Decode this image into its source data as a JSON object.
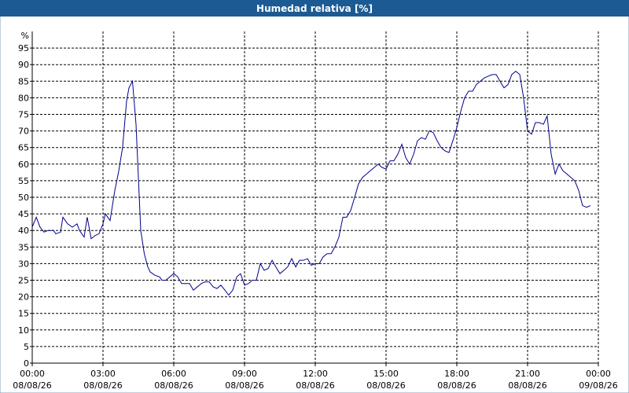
{
  "chart_data": {
    "type": "line",
    "title": "Humedad relativa [%]",
    "y_label": "%",
    "xlim": [
      0,
      24
    ],
    "ylim": [
      0,
      100
    ],
    "xticks": [
      {
        "value": 0,
        "label": "00:00"
      },
      {
        "value": 3,
        "label": "03:00"
      },
      {
        "value": 6,
        "label": "06:00"
      },
      {
        "value": 9,
        "label": "09:00"
      },
      {
        "value": 12,
        "label": "12:00"
      },
      {
        "value": 15,
        "label": "15:00"
      },
      {
        "value": 18,
        "label": "18:00"
      },
      {
        "value": 21,
        "label": "21:00"
      },
      {
        "value": 24,
        "label": "00:00"
      }
    ],
    "xtick_dates": [
      "08/08/26",
      "08/08/26",
      "08/08/26",
      "08/08/26",
      "08/08/26",
      "08/08/26",
      "08/08/26",
      "08/08/26",
      "09/08/26"
    ],
    "yticks": [
      0,
      5,
      10,
      15,
      20,
      25,
      30,
      35,
      40,
      45,
      50,
      55,
      60,
      65,
      70,
      75,
      80,
      85,
      90,
      95
    ],
    "grid": true,
    "x": [
      0,
      0.17,
      0.33,
      0.5,
      0.67,
      0.9,
      1.0,
      1.2,
      1.3,
      1.5,
      1.7,
      1.9,
      2.0,
      2.2,
      2.33,
      2.5,
      2.67,
      2.83,
      3.0,
      3.1,
      3.3,
      3.5,
      3.67,
      3.83,
      4.0,
      4.1,
      4.25,
      4.4,
      4.6,
      4.75,
      4.9,
      5.0,
      5.2,
      5.4,
      5.5,
      5.67,
      5.83,
      6.0,
      6.17,
      6.33,
      6.5,
      6.67,
      6.83,
      7.0,
      7.17,
      7.33,
      7.5,
      7.67,
      7.83,
      8.0,
      8.17,
      8.33,
      8.5,
      8.67,
      8.83,
      9.0,
      9.17,
      9.33,
      9.5,
      9.67,
      9.83,
      10.0,
      10.17,
      10.33,
      10.5,
      10.67,
      10.83,
      11.0,
      11.17,
      11.33,
      11.5,
      11.67,
      11.83,
      12.0,
      12.17,
      12.33,
      12.5,
      12.67,
      12.83,
      13.0,
      13.17,
      13.33,
      13.5,
      13.67,
      13.83,
      14.0,
      14.17,
      14.33,
      14.5,
      14.67,
      14.83,
      15.0,
      15.17,
      15.33,
      15.5,
      15.67,
      15.83,
      16.0,
      16.17,
      16.33,
      16.5,
      16.67,
      16.83,
      17.0,
      17.17,
      17.33,
      17.5,
      17.67,
      17.83,
      18.0,
      18.17,
      18.33,
      18.5,
      18.67,
      18.83,
      19.0,
      19.17,
      19.33,
      19.5,
      19.67,
      19.83,
      20.0,
      20.17,
      20.33,
      20.5,
      20.67,
      20.83,
      21.0,
      21.17,
      21.33,
      21.5,
      21.67,
      21.83,
      22.0,
      22.17,
      22.33,
      22.5,
      22.67,
      22.83,
      23.0,
      23.17,
      23.33,
      23.5,
      23.67
    ],
    "series": [
      {
        "name": "Humedad relativa",
        "color": "#00008b",
        "values": [
          41,
          44,
          41,
          39.5,
          40,
          40,
          39,
          39.5,
          44,
          42,
          41,
          42,
          40,
          38,
          44,
          37.5,
          38.5,
          39,
          42,
          45,
          43,
          52,
          58,
          65,
          79,
          83,
          85,
          72,
          40,
          33,
          29,
          27.5,
          26.5,
          26,
          25,
          25,
          26,
          27,
          26,
          24,
          24,
          24,
          22,
          23,
          24,
          24.5,
          24.5,
          23,
          22.5,
          23.5,
          22,
          20.5,
          22,
          26,
          27,
          23.5,
          24,
          25,
          25,
          30,
          28,
          28.5,
          31,
          29,
          27,
          28,
          29,
          31.5,
          29,
          31,
          31,
          31.5,
          29.5,
          30,
          30,
          32,
          33,
          33,
          35,
          38,
          44,
          44,
          46,
          50,
          54,
          56,
          57,
          58,
          59,
          60,
          59,
          58.5,
          61,
          61,
          63,
          66,
          62,
          60,
          63,
          67,
          68,
          67.5,
          70,
          69.5,
          67,
          65,
          64,
          63.5,
          67,
          71,
          76,
          80,
          82,
          82,
          84,
          85,
          86,
          86.5,
          87,
          87,
          85,
          83,
          84,
          87,
          88,
          87,
          80,
          70,
          69,
          72.5,
          72.5,
          72,
          74.5,
          63,
          57,
          60,
          58,
          57,
          56,
          55,
          52,
          47.5,
          47,
          47.5
        ]
      }
    ]
  }
}
